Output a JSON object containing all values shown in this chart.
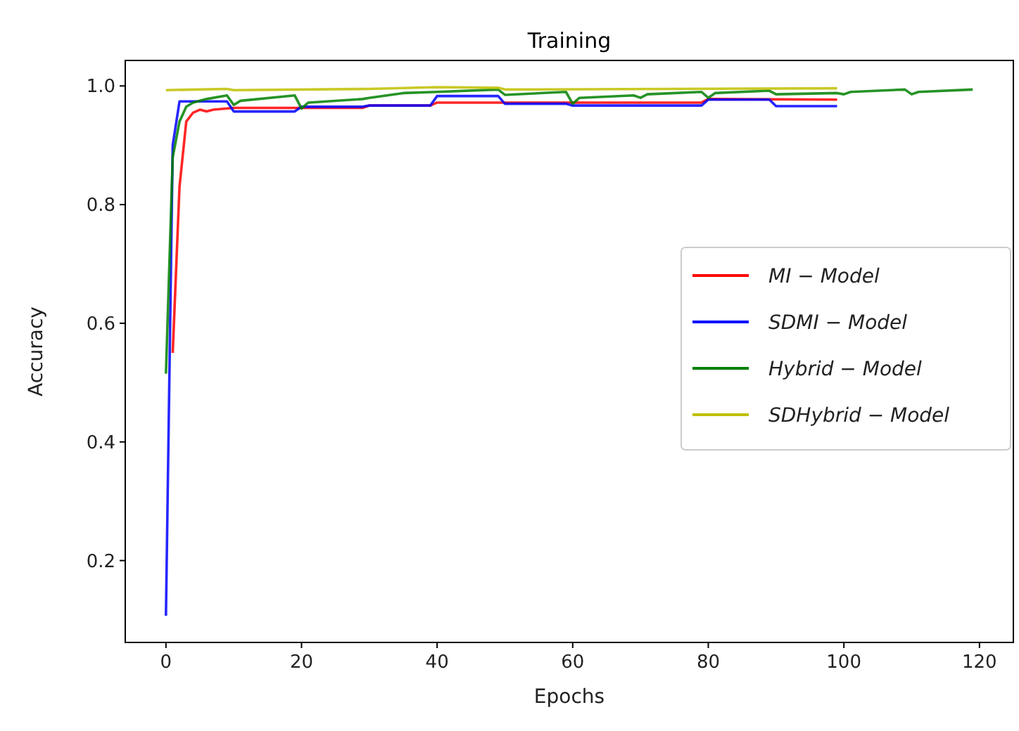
{
  "chart_data": {
    "type": "line",
    "title": "Training",
    "xlabel": "Epochs",
    "ylabel": "Accuracy",
    "xlim": [
      -6,
      125
    ],
    "xticks": [
      0,
      20,
      40,
      60,
      80,
      100,
      120
    ],
    "ylim": [
      0.062,
      1.043
    ],
    "yticks": [
      {
        "value": 0.2,
        "label": "0.2"
      },
      {
        "value": 0.4,
        "label": "0.4"
      },
      {
        "value": 0.6,
        "label": "0.6"
      },
      {
        "value": 0.8,
        "label": "0.8"
      },
      {
        "value": 1.0,
        "label": "1.0"
      }
    ],
    "grid": false,
    "legend": "right",
    "line_style": "solid",
    "series": [
      {
        "name": "MI − Model",
        "color": "#ff0000",
        "x": [
          1,
          2,
          3,
          4,
          5,
          6,
          7,
          10,
          29,
          30,
          39,
          40,
          79,
          80,
          99
        ],
        "values": [
          0.55,
          0.83,
          0.94,
          0.955,
          0.96,
          0.957,
          0.96,
          0.963,
          0.963,
          0.967,
          0.967,
          0.972,
          0.972,
          0.978,
          0.977
        ]
      },
      {
        "name": "SDMI − Model",
        "color": "#0000ff",
        "x": [
          0,
          1,
          2,
          9,
          10,
          19,
          20,
          29,
          30,
          39,
          40,
          49,
          50,
          59,
          60,
          79,
          80,
          89,
          90,
          99
        ],
        "values": [
          0.107,
          0.9,
          0.974,
          0.974,
          0.957,
          0.957,
          0.965,
          0.965,
          0.967,
          0.967,
          0.983,
          0.983,
          0.97,
          0.97,
          0.967,
          0.967,
          0.977,
          0.977,
          0.966,
          0.966
        ]
      },
      {
        "name": "Hybrid − Model",
        "color": "#008000",
        "x": [
          0,
          1,
          2,
          3,
          4,
          6,
          9,
          10,
          11,
          19,
          20,
          21,
          29,
          30,
          35,
          40,
          49,
          50,
          59,
          60,
          61,
          69,
          70,
          71,
          79,
          80,
          81,
          89,
          90,
          99,
          100,
          101,
          109,
          110,
          111,
          119
        ],
        "values": [
          0.515,
          0.88,
          0.94,
          0.965,
          0.972,
          0.978,
          0.984,
          0.968,
          0.975,
          0.984,
          0.962,
          0.972,
          0.978,
          0.98,
          0.988,
          0.99,
          0.994,
          0.985,
          0.99,
          0.97,
          0.98,
          0.984,
          0.98,
          0.986,
          0.99,
          0.98,
          0.988,
          0.992,
          0.986,
          0.988,
          0.986,
          0.99,
          0.994,
          0.986,
          0.99,
          0.994
        ]
      },
      {
        "name": "SDHybrid − Model",
        "color": "#bfbf00",
        "x": [
          0,
          9,
          10,
          30,
          40,
          49,
          50,
          99
        ],
        "values": [
          0.993,
          0.995,
          0.993,
          0.995,
          0.998,
          0.997,
          0.994,
          0.996
        ]
      }
    ]
  }
}
